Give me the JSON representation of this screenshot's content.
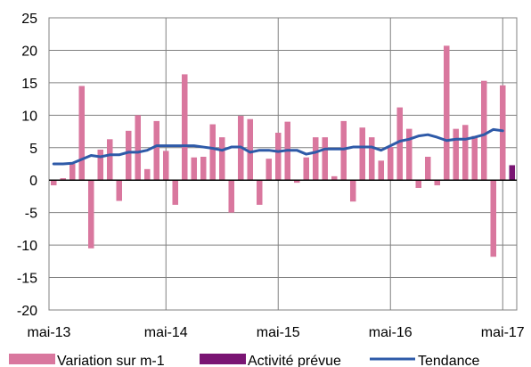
{
  "chart_data": {
    "type": "bar",
    "title": "",
    "xlabel": "",
    "ylabel": "",
    "ylim": [
      -20,
      25
    ],
    "yticks": [
      "25",
      "20",
      "15",
      "10",
      "5",
      "0",
      "-5",
      "-10",
      "-15",
      "-20"
    ],
    "ytick_values": [
      25,
      20,
      15,
      10,
      5,
      0,
      -5,
      -10,
      -15,
      -20
    ],
    "xtick_labels": [
      "mai-13",
      "mai-14",
      "mai-15",
      "mai-16",
      "mai-17"
    ],
    "xtick_index": [
      0,
      12,
      24,
      36,
      48
    ],
    "grid": true,
    "legend_position": "bottom",
    "colors": {
      "variation": "#D9779E",
      "activite": "#7A1573",
      "tendance": "#2E5AA8",
      "grid": "#808080"
    },
    "series": [
      {
        "name": "Variation sur m-1",
        "kind": "bar",
        "values": [
          -0.8,
          0.3,
          2.5,
          14.5,
          -10.5,
          4.7,
          6.3,
          -3.2,
          7.6,
          10.0,
          1.7,
          9.1,
          4.5,
          -3.8,
          16.3,
          3.5,
          3.6,
          8.6,
          6.6,
          -5.0,
          9.9,
          9.4,
          -3.8,
          3.3,
          7.3,
          9.0,
          -0.4,
          3.5,
          6.6,
          6.6,
          0.6,
          9.1,
          -3.3,
          8.1,
          6.6,
          3.0,
          5.1,
          11.2,
          7.9,
          -1.2,
          3.6,
          -0.8,
          20.7,
          7.9,
          8.5,
          6.8,
          15.3,
          -11.8,
          14.6,
          null
        ]
      },
      {
        "name": "Activité prévue",
        "kind": "bar",
        "values": [
          null,
          null,
          null,
          null,
          null,
          null,
          null,
          null,
          null,
          null,
          null,
          null,
          null,
          null,
          null,
          null,
          null,
          null,
          null,
          null,
          null,
          null,
          null,
          null,
          null,
          null,
          null,
          null,
          null,
          null,
          null,
          null,
          null,
          null,
          null,
          null,
          null,
          null,
          null,
          null,
          null,
          null,
          null,
          null,
          null,
          null,
          null,
          null,
          null,
          2.3
        ]
      },
      {
        "name": "Tendance",
        "kind": "line",
        "values": [
          2.5,
          2.5,
          2.6,
          3.2,
          3.8,
          3.6,
          3.9,
          3.9,
          4.3,
          4.3,
          4.6,
          5.3,
          5.3,
          5.3,
          5.3,
          5.3,
          5.1,
          4.9,
          4.6,
          5.1,
          5.1,
          4.3,
          4.6,
          4.6,
          4.4,
          4.6,
          4.6,
          4.0,
          4.3,
          4.8,
          4.8,
          4.8,
          5.1,
          5.1,
          5.1,
          4.6,
          5.3,
          6.0,
          6.3,
          6.8,
          7.0,
          6.6,
          6.1,
          6.3,
          6.3,
          6.6,
          7.0,
          7.8,
          7.6,
          null
        ]
      }
    ]
  }
}
